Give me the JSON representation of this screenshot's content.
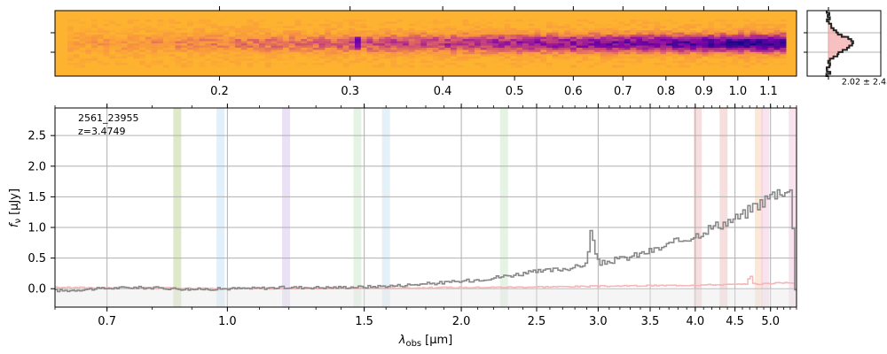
{
  "chart_data": [
    {
      "panel": "2d-spectrum",
      "type": "heatmap",
      "colormap": "plasma",
      "background_color": "#fdb32f",
      "x_unit": "micron",
      "x_ticks": [
        "0.2",
        "0.3",
        "0.4",
        "0.5",
        "0.6",
        "0.7",
        "0.8",
        "0.9",
        "1.0",
        "1.1"
      ]
    },
    {
      "panel": "spatial-profile",
      "type": "line",
      "label": "2.02 ± 2.43",
      "profile_color": "#222222",
      "fill_color": "#f4a6a6"
    },
    {
      "panel": "1d-spectrum",
      "type": "line",
      "title_lines": [
        "2561_23955",
        "z=3.4749"
      ],
      "xlabel_main": "λ",
      "xlabel_sub": "obs",
      "xlabel_unit": "[μm]",
      "ylabel_main": "f",
      "ylabel_sub": "ν",
      "ylabel_unit": "[μJy]",
      "xscale": "log",
      "xlim": [
        0.6,
        5.4
      ],
      "ylim": [
        -0.3,
        2.95
      ],
      "x_ticks": [
        "0.7",
        "1.0",
        "1.5",
        "2.0",
        "2.5",
        "3.0",
        "3.5",
        "4.0",
        "4.5",
        "5.0"
      ],
      "y_ticks": [
        "0.0",
        "0.5",
        "1.0",
        "1.5",
        "2.0",
        "2.5"
      ],
      "grid": true,
      "series": [
        {
          "role": "flux",
          "color": "#888888",
          "x": [
            0.62,
            0.68,
            0.75,
            0.82,
            0.9,
            1.0,
            1.1,
            1.2,
            1.35,
            1.5,
            1.65,
            1.8,
            2.0,
            2.2,
            2.4,
            2.6,
            2.8,
            2.9,
            2.93,
            2.96,
            3.0,
            3.1,
            3.25,
            3.4,
            3.6,
            3.8,
            4.0,
            4.15,
            4.3,
            4.45,
            4.6,
            4.75,
            4.85,
            4.95,
            5.05,
            5.15,
            5.25,
            5.32,
            5.35,
            5.37
          ],
          "y": [
            -0.03,
            0.0,
            0.02,
            0.01,
            -0.01,
            0.0,
            0.01,
            0.02,
            0.02,
            0.03,
            0.05,
            0.08,
            0.12,
            0.18,
            0.25,
            0.3,
            0.35,
            0.42,
            1.05,
            0.62,
            0.4,
            0.45,
            0.5,
            0.57,
            0.66,
            0.78,
            0.87,
            0.98,
            1.05,
            1.12,
            1.2,
            1.35,
            1.4,
            1.48,
            1.55,
            1.62,
            1.58,
            1.55,
            0.1,
            0.0
          ]
        },
        {
          "role": "error",
          "color": "#f4b6b6",
          "x": [
            0.62,
            1.0,
            1.5,
            2.0,
            2.5,
            3.0,
            3.5,
            4.0,
            4.5,
            4.65,
            4.7,
            4.75,
            5.0,
            5.37
          ],
          "y": [
            0.02,
            0.0,
            0.01,
            0.02,
            0.03,
            0.04,
            0.05,
            0.06,
            0.07,
            0.07,
            0.24,
            0.07,
            0.09,
            0.1
          ]
        }
      ],
      "line_bands": [
        {
          "x": 0.862,
          "color": "#c5d69a"
        },
        {
          "x": 0.98,
          "color": "#c8e4f5"
        },
        {
          "x": 1.19,
          "color": "#d8c8ec"
        },
        {
          "x": 1.47,
          "color": "#cfeacf"
        },
        {
          "x": 1.6,
          "color": "#cde6f3"
        },
        {
          "x": 2.27,
          "color": "#cfe9cf"
        },
        {
          "x": 4.03,
          "color": "#f3c4c4"
        },
        {
          "x": 4.35,
          "color": "#f0c2c2"
        },
        {
          "x": 4.83,
          "color": "#fbd4b4"
        },
        {
          "x": 4.92,
          "color": "#f3cce0"
        },
        {
          "x": 5.34,
          "color": "#f3cce0"
        }
      ]
    }
  ]
}
